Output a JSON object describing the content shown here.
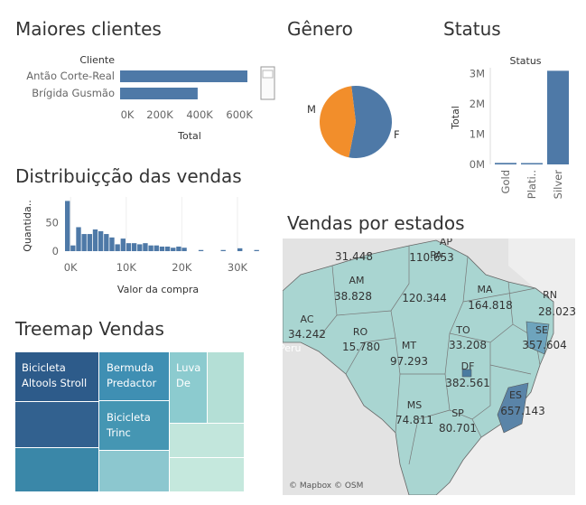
{
  "titles": {
    "clients": "Maiores clientes",
    "gender": "Gênero",
    "status": "Status",
    "distribution": "Distribuiçção das vendas",
    "treemap": "Treemap Vendas",
    "map": "Vendas por estados"
  },
  "colors": {
    "primary": "#4e79a7",
    "orange": "#f28e2b",
    "teal_light": "#bfe3d9",
    "teal_dark": "#2d5b8a"
  },
  "chart_data": [
    {
      "id": "clients",
      "type": "bar",
      "orientation": "horizontal",
      "header": "Cliente",
      "categories": [
        "Antão Corte-Real",
        "Brígida Gusmão"
      ],
      "values": [
        640000,
        390000
      ],
      "xlabel": "Total",
      "xticks": [
        "0K",
        "200K",
        "400K",
        "600K"
      ],
      "xlim": [
        0,
        700000
      ]
    },
    {
      "id": "gender",
      "type": "pie",
      "labels": [
        "M",
        "F"
      ],
      "values": [
        45,
        55
      ],
      "colors": [
        "#f28e2b",
        "#4e79a7"
      ]
    },
    {
      "id": "status",
      "type": "bar",
      "header": "Status",
      "categories": [
        "Gold",
        "Plati..",
        "Silver"
      ],
      "values": [
        50000,
        10000,
        3100000
      ],
      "ylabel": "Total",
      "yticks": [
        "0M",
        "1M",
        "2M",
        "3M"
      ],
      "ylim": [
        0,
        3200000
      ]
    },
    {
      "id": "distribution",
      "type": "bar",
      "xlabel": "Valor da compra",
      "ylabel": "Quantida..",
      "xticks": [
        "0K",
        "10K",
        "20K",
        "30K"
      ],
      "yticks": [
        "0",
        "50"
      ],
      "xlim": [
        -1000,
        36000
      ],
      "ylim": [
        0,
        95
      ],
      "bin_width": 1000,
      "bins_start": [
        -1000,
        0,
        1000,
        2000,
        3000,
        4000,
        5000,
        6000,
        7000,
        8000,
        9000,
        10000,
        11000,
        12000,
        13000,
        14000,
        15000,
        16000,
        17000,
        18000,
        19000,
        20000,
        23000,
        27000,
        30000,
        33000
      ],
      "values": [
        88,
        10,
        42,
        30,
        30,
        38,
        35,
        30,
        24,
        12,
        22,
        14,
        14,
        12,
        14,
        10,
        10,
        8,
        8,
        6,
        8,
        6,
        2,
        2,
        5,
        2
      ]
    },
    {
      "id": "treemap",
      "type": "treemap",
      "labels": [
        "Bicicleta Altools Stroll",
        "Bermuda Predactor",
        "Bicicleta Trinc",
        "Luva De"
      ]
    }
  ],
  "map": {
    "attribution": "© Mapbox © OSM",
    "state_labels": [
      {
        "abbr": "AP",
        "value": "110.653"
      },
      {
        "abbr": "RR",
        "value": "31.448"
      },
      {
        "abbr": "AM",
        "value": "38.828"
      },
      {
        "abbr": "PA",
        "value": "120.344"
      },
      {
        "abbr": "MA",
        "value": "164.818"
      },
      {
        "abbr": "RN",
        "value": "28.023"
      },
      {
        "abbr": "AC",
        "value": "34.242"
      },
      {
        "abbr": "RO",
        "value": "15.780"
      },
      {
        "abbr": "TO",
        "value": "33.208"
      },
      {
        "abbr": "SE",
        "value": "357.604"
      },
      {
        "abbr": "MT",
        "value": "97.293"
      },
      {
        "abbr": "DF",
        "value": "382.561"
      },
      {
        "abbr": "ES",
        "value": "657.143"
      },
      {
        "abbr": "MS",
        "value": "74.811"
      },
      {
        "abbr": "SP",
        "value": "80.701"
      }
    ],
    "country_label": "Peru"
  }
}
